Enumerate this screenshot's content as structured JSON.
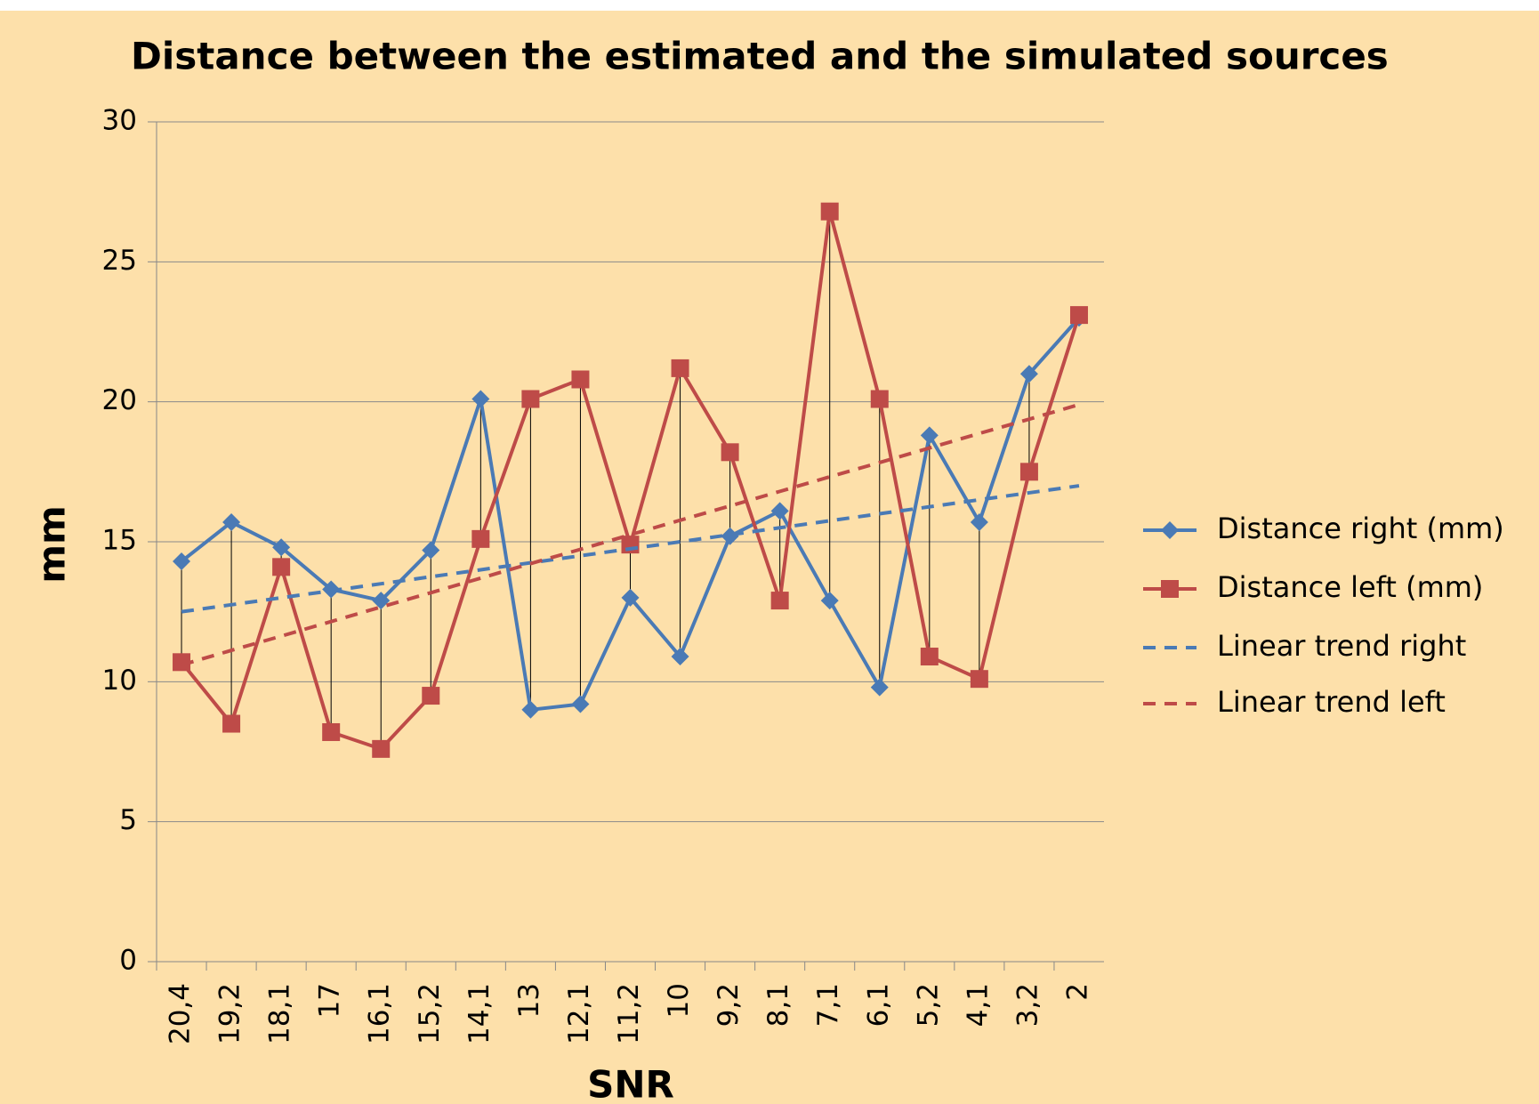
{
  "chart_data": {
    "type": "line",
    "title": "Distance between the estimated and the simulated sources",
    "x_label": "SNR",
    "y_label": "mm",
    "categories": [
      "20,4",
      "19,2",
      "18,1",
      "17",
      "16,1",
      "15,2",
      "14,1",
      "13",
      "12,1",
      "11,2",
      "10",
      "9,2",
      "8,1",
      "7,1",
      "6,1",
      "5,2",
      "4,1",
      "3,2",
      "2"
    ],
    "series": [
      {
        "name": "Distance right (mm)",
        "color": "#4a7ab5",
        "marker": "diamond",
        "values": [
          14.3,
          15.7,
          14.8,
          13.3,
          12.9,
          14.7,
          20.1,
          9.0,
          9.2,
          13.0,
          10.9,
          15.2,
          16.1,
          12.9,
          9.8,
          18.8,
          15.7,
          21.0,
          23.0
        ]
      },
      {
        "name": "Distance left (mm)",
        "color": "#be4b48",
        "marker": "square",
        "values": [
          10.7,
          8.5,
          14.1,
          8.2,
          7.6,
          9.5,
          15.1,
          20.1,
          20.8,
          14.9,
          21.2,
          18.2,
          12.9,
          26.8,
          20.1,
          10.9,
          10.1,
          17.5,
          23.1
        ]
      },
      {
        "name": "Linear trend right",
        "color": "#4a7ab5",
        "dashed": true,
        "values": [
          12.5,
          12.75,
          13.0,
          13.25,
          13.5,
          13.75,
          14.0,
          14.25,
          14.5,
          14.75,
          15.0,
          15.25,
          15.5,
          15.75,
          16.0,
          16.25,
          16.5,
          16.75,
          17.0
        ]
      },
      {
        "name": "Linear trend left",
        "color": "#be4b48",
        "dashed": true,
        "values": [
          10.6,
          11.12,
          11.63,
          12.15,
          12.67,
          13.18,
          13.7,
          14.22,
          14.73,
          15.25,
          15.77,
          16.28,
          16.8,
          17.32,
          17.83,
          18.35,
          18.87,
          19.38,
          19.9
        ]
      }
    ],
    "drop_lines": true,
    "ylim": [
      0,
      30
    ],
    "yticks": [
      0,
      5,
      10,
      15,
      20,
      25,
      30
    ],
    "grid": true,
    "legend": "right"
  }
}
